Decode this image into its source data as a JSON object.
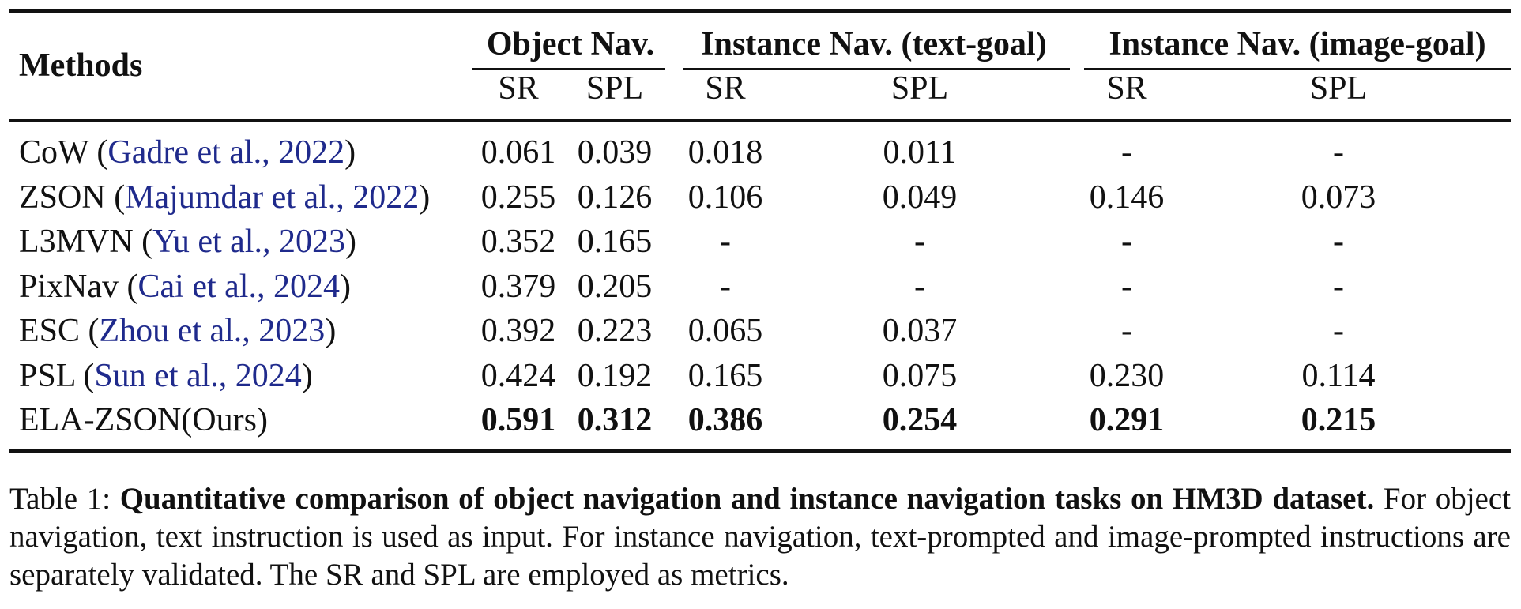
{
  "table": {
    "method_header": "Methods",
    "groups": [
      {
        "label": "Object Nav.",
        "sub": [
          "SR",
          "SPL"
        ]
      },
      {
        "label": "Instance Nav. (text-goal)",
        "sub": [
          "SR",
          "SPL"
        ]
      },
      {
        "label": "Instance Nav. (image-goal)",
        "sub": [
          "SR",
          "SPL"
        ]
      }
    ],
    "rows": [
      {
        "method": "CoW",
        "cite": "Gadre et al., 2022",
        "values": [
          "0.061",
          "0.039",
          "0.018",
          "0.011",
          "-",
          "-"
        ],
        "bold": false
      },
      {
        "method": "ZSON",
        "cite": "Majumdar et al., 2022",
        "values": [
          "0.255",
          "0.126",
          "0.106",
          "0.049",
          "0.146",
          "0.073"
        ],
        "bold": false
      },
      {
        "method": "L3MVN",
        "cite": "Yu et al., 2023",
        "values": [
          "0.352",
          "0.165",
          "-",
          "-",
          "-",
          "-"
        ],
        "bold": false
      },
      {
        "method": "PixNav",
        "cite": "Cai et al., 2024",
        "values": [
          "0.379",
          "0.205",
          "-",
          "-",
          "-",
          "-"
        ],
        "bold": false
      },
      {
        "method": "ESC",
        "cite": "Zhou et al., 2023",
        "values": [
          "0.392",
          "0.223",
          "0.065",
          "0.037",
          "-",
          "-"
        ],
        "bold": false
      },
      {
        "method": "PSL",
        "cite": "Sun et al., 2024",
        "values": [
          "0.424",
          "0.192",
          "0.165",
          "0.075",
          "0.230",
          "0.114"
        ],
        "bold": false
      },
      {
        "method": "ELA-ZSON(Ours)",
        "cite": "",
        "values": [
          "0.591",
          "0.312",
          "0.386",
          "0.254",
          "0.291",
          "0.215"
        ],
        "bold": true
      }
    ]
  },
  "caption": {
    "label": "Table 1:",
    "bold_text": "Quantitative comparison of object navigation and instance navigation tasks on HM3D dataset.",
    "text": "For object navigation, text instruction is used as input. For instance navigation, text-prompted and image-prompted instructions are separately validated. The SR and SPL are employed as metrics."
  }
}
